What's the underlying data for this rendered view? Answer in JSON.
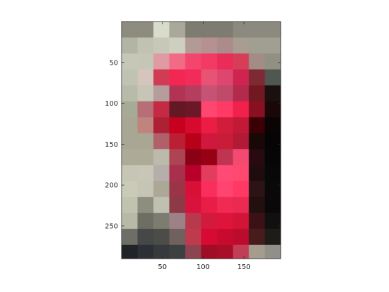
{
  "chart_data": {
    "type": "heatmap",
    "title": "",
    "xlabel": "",
    "ylabel": "",
    "xlim": [
      0,
      195
    ],
    "ylim": [
      0,
      290
    ],
    "y_direction": "reverse",
    "grid": false,
    "pixel_size": 19.5,
    "x_ticks": [
      50,
      100,
      150
    ],
    "y_ticks": [
      50,
      100,
      150,
      200,
      250
    ],
    "cells": [
      [
        "#8e8c7e",
        "#8e8c7e",
        "#d8dcca",
        "#a9a89a",
        "#7e7c70",
        "#7e7c70",
        "#7e7c70",
        "#8c8a7e",
        "#8c8a7e",
        "#8c8a7e",
        "#8c8a7e"
      ],
      [
        "#b2b4a4",
        "#c2c2b2",
        "#c8c8b8",
        "#cfcfbf",
        "#b39b95",
        "#b59191",
        "#ab8c8a",
        "#a99c90",
        "#a19e92",
        "#a19e92",
        "#a19e92"
      ],
      [
        "#c6c7b7",
        "#c5c6b6",
        "#e09aa4",
        "#f16a86",
        "#f4456e",
        "#f23a64",
        "#ea2c58",
        "#d63e58",
        "#a28c84",
        "#909083",
        "#8e8c80"
      ],
      [
        "#c0c2b2",
        "#d5c5bc",
        "#d03c54",
        "#f42654",
        "#f22c5a",
        "#e85274",
        "#de4670",
        "#d02450",
        "#7d2a34",
        "#505650",
        "#404440"
      ],
      [
        "#b8bbaa",
        "#c6c5b6",
        "#b69c9c",
        "#b23454",
        "#b43e5e",
        "#c65274",
        "#c04a6a",
        "#b42a4c",
        "#721820",
        "#1a1010",
        "#0a0606"
      ],
      [
        "#a8aa98",
        "#b76e76",
        "#c42a44",
        "#641824",
        "#6c1828",
        "#ff4670",
        "#ff3a64",
        "#f2204c",
        "#881020",
        "#1a0808",
        "#040202"
      ],
      [
        "#a9a694",
        "#c0847e",
        "#ae2034",
        "#c6001e",
        "#d60a2e",
        "#ec1c44",
        "#d21c3c",
        "#c21a36",
        "#3a0006",
        "#0a0404",
        "#040202"
      ],
      [
        "#a8a694",
        "#aaa694",
        "#b06068",
        "#bc1e34",
        "#b80018",
        "#d0183e",
        "#c81c38",
        "#b01a36",
        "#180808",
        "#060404",
        "#040202"
      ],
      [
        "#acaa98",
        "#aeaa98",
        "#bcbaaa",
        "#ac4454",
        "#8a0014",
        "#980014",
        "#c03452",
        "#f44a72",
        "#280a10",
        "#060606",
        "#040404"
      ],
      [
        "#c6c6b6",
        "#c8c6b6",
        "#b6aeaa",
        "#a8304c",
        "#b8002a",
        "#e23c5e",
        "#fe4a74",
        "#ff4870",
        "#200c0e",
        "#080808",
        "#040404"
      ],
      [
        "#cacab8",
        "#c6c4b4",
        "#aba898",
        "#9c3448",
        "#d81038",
        "#fa2e5c",
        "#ff4470",
        "#ff3864",
        "#2c1416",
        "#0a0808",
        "#060606"
      ],
      [
        "#c2c2b0",
        "#8e8e80",
        "#c0c0b0",
        "#8c3a46",
        "#d8123c",
        "#e81e46",
        "#f02a52",
        "#ea2a52",
        "#22100e",
        "#0a0808",
        "#060606"
      ],
      [
        "#b8baa8",
        "#6e6e64",
        "#7c7c70",
        "#9c8286",
        "#b8384c",
        "#d21a3e",
        "#de143a",
        "#d41436",
        "#3a1216",
        "#12100e",
        "#0c0a0a"
      ],
      [
        "#6e6e66",
        "#464848",
        "#4c4c48",
        "#70605e",
        "#c03a4e",
        "#d60a32",
        "#c80a2e",
        "#bc0c2e",
        "#461c1c",
        "#1e1c18",
        "#181614"
      ],
      [
        "#202428",
        "#2c3034",
        "#363a3c",
        "#3c4040",
        "#8c4450",
        "#a00e26",
        "#a80e2a",
        "#c23e56",
        "#a69c8e",
        "#909088",
        "#7e7e74"
      ],
      [
        "#4c5052",
        "#2a2e32",
        "#1e2226",
        "#303438",
        "#90243a",
        "#900c20",
        "#b41c38",
        "#d6506a",
        "#d8d6cc",
        "#ecf0e4",
        "#e6eae0"
      ],
      [
        "#c8c8bc",
        "#b2b2a8",
        "#b0b0a6",
        "#acaca4",
        "#c47e8c",
        "#e67a90",
        "#e88aa0",
        "#e4b8c0",
        "#c6d0d0",
        "#bccace",
        "#c2ccc8"
      ],
      [
        "#d0d0c6",
        "#cacac0",
        "#d0d0c4",
        "#d2d2c6",
        "#d2d2c6",
        "#d2d2c6",
        "#d0d0c4",
        "#d6d6ca",
        "#d2d2c8",
        "#d2d2c8",
        "#d0d0c6"
      ],
      [
        "#d2d2c4",
        "#cacabe",
        "#cacabe",
        "#d0d0c2",
        "#d2d2c4",
        "#d4d4c6",
        "#d2d2c4",
        "#d4d4c6",
        "#d8d8ca",
        "#d8d8ca",
        "#d2d2c4"
      ]
    ]
  }
}
